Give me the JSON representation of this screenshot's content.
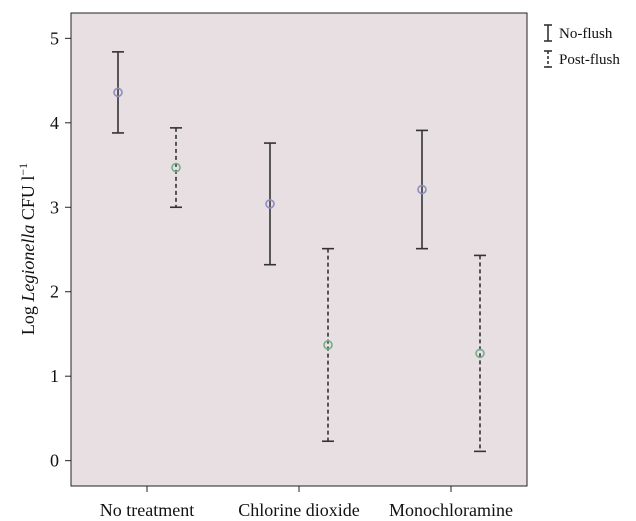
{
  "chart_data": {
    "type": "errorbar",
    "categories": [
      "No treatment",
      "Chlorine dioxide",
      "Monochloramine"
    ],
    "ylabel_prefix": "Log ",
    "ylabel_italic": "Legionella",
    "ylabel_suffix": " CFU l",
    "ylabel_exponent": "−1",
    "ylim": [
      -0.3,
      5.3
    ],
    "yticks": [
      "0",
      "1",
      "2",
      "3",
      "4",
      "5"
    ],
    "ytick_values": [
      0,
      1,
      2,
      3,
      4,
      5
    ],
    "grid": false,
    "legend_position": "outside-top-right",
    "background_color": "#e8dfe3",
    "series": [
      {
        "name": "No-flush",
        "style": "solid",
        "marker_color": "#8e8cc0",
        "points": [
          {
            "mean": 4.36,
            "lower": 3.88,
            "upper": 4.84
          },
          {
            "mean": 3.04,
            "lower": 2.32,
            "upper": 3.76
          },
          {
            "mean": 3.21,
            "lower": 2.51,
            "upper": 3.91
          }
        ]
      },
      {
        "name": "Post-flush",
        "style": "dashed",
        "marker_color": "#6fb08a",
        "points": [
          {
            "mean": 3.47,
            "lower": 3.0,
            "upper": 3.94
          },
          {
            "mean": 1.37,
            "lower": 0.23,
            "upper": 2.51
          },
          {
            "mean": 1.27,
            "lower": 0.11,
            "upper": 2.43
          }
        ]
      }
    ]
  }
}
